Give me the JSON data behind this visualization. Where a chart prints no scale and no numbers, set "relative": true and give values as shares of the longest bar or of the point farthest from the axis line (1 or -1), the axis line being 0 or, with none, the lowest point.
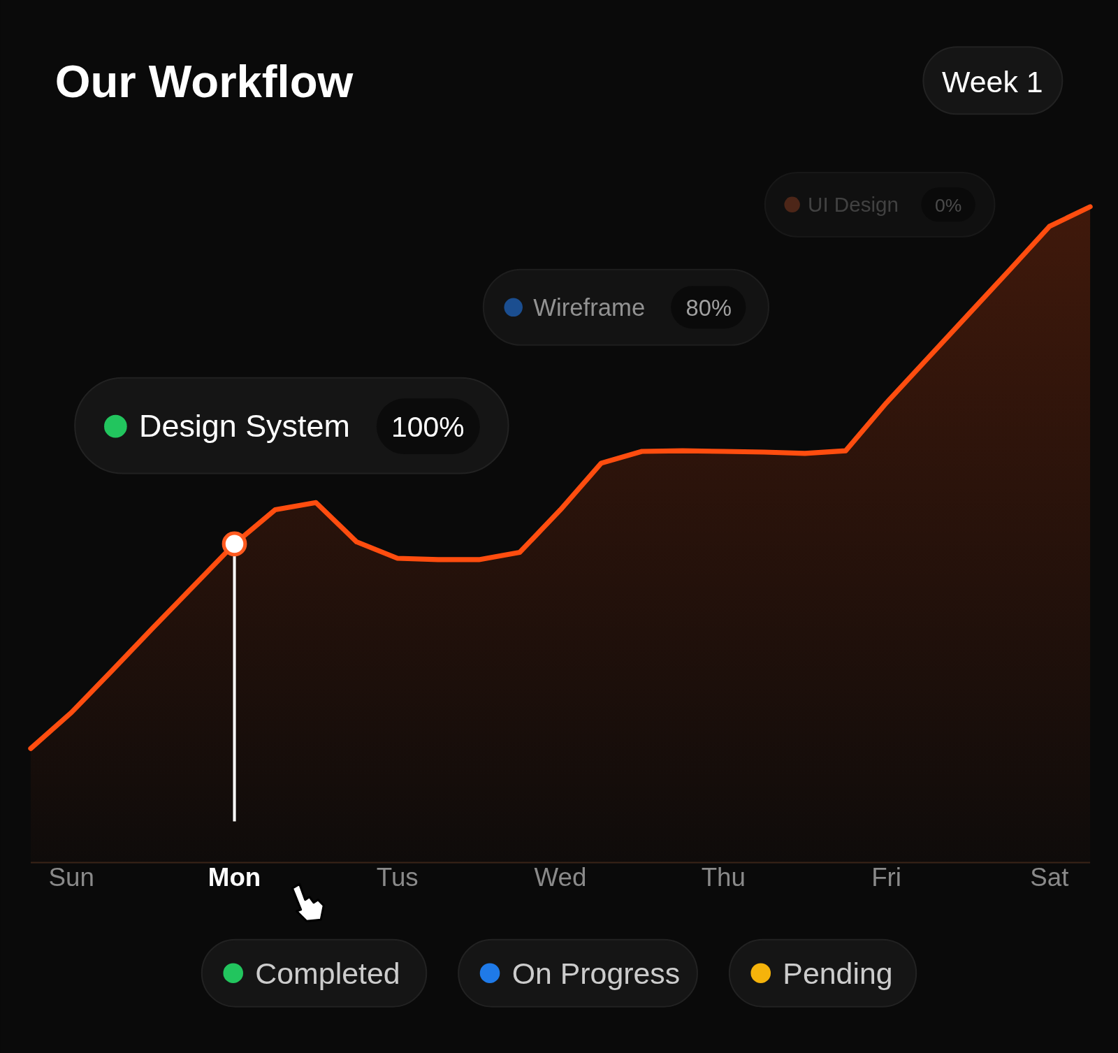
{
  "chart_data": {
    "type": "area",
    "title": "Our Workflow",
    "relative": true,
    "categories": [
      null,
      "Sun",
      null,
      null,
      null,
      "Mon",
      null,
      null,
      null,
      "Tus",
      null,
      null,
      null,
      "Wed",
      null,
      null,
      null,
      "Thu",
      null,
      null,
      null,
      "Fri",
      null,
      null,
      null,
      "Sat",
      null
    ],
    "series": [
      {
        "color": "#ff4d0f",
        "values": [
          0.174,
          0.229,
          0.293,
          0.358,
          0.422,
          0.486,
          0.538,
          0.549,
          0.489,
          0.464,
          0.462,
          0.462,
          0.473,
          0.538,
          0.609,
          0.627,
          0.628,
          0.627,
          0.626,
          0.624,
          0.628,
          0.701,
          0.768,
          0.835,
          0.902,
          0.97,
          1
        ]
      }
    ],
    "ref_lines": [
      {
        "axis": "x",
        "value": "Mon",
        "color": "#ffffff"
      }
    ],
    "annotations": [
      "Week 1",
      "Design System",
      "100%",
      "Wireframe",
      "80%",
      "UI Design",
      "0%",
      "Completed",
      "On Progress",
      "Pending"
    ],
    "marker": "none",
    "line_style": "solid"
  }
}
